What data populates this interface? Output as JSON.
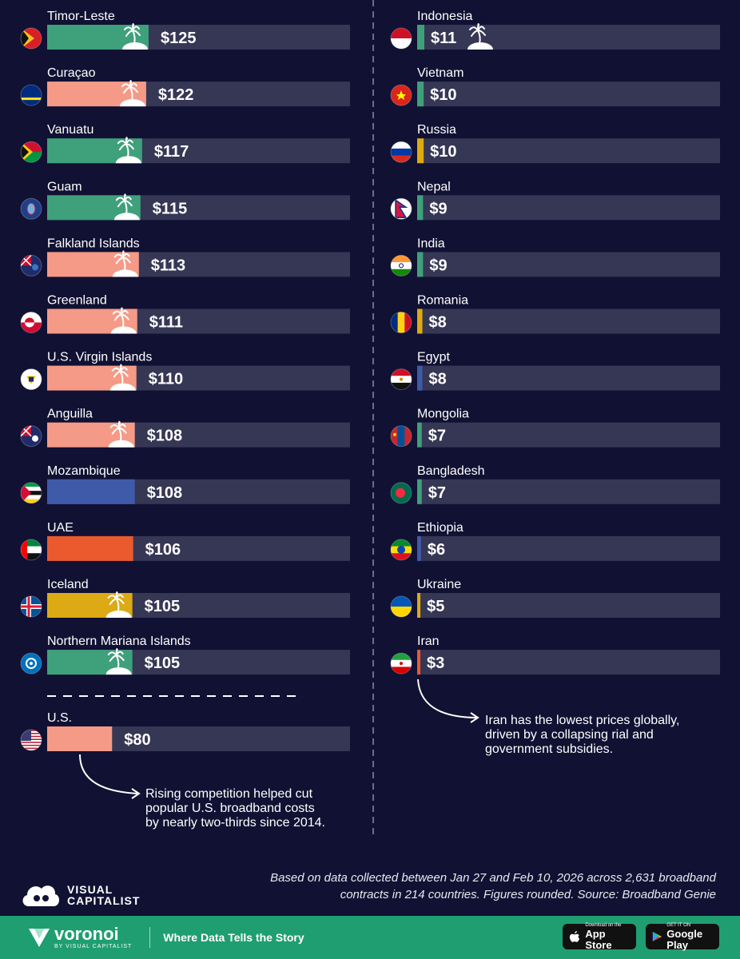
{
  "chart_data": {
    "type": "bar",
    "left_column": [
      {
        "country": "Timor-Leste",
        "value": 125,
        "label": "$125",
        "color": "#3fa07c",
        "island": true
      },
      {
        "country": "Curaçao",
        "value": 122,
        "label": "$122",
        "color": "#f59a86",
        "island": true
      },
      {
        "country": "Vanuatu",
        "value": 117,
        "label": "$117",
        "color": "#3fa07c",
        "island": true
      },
      {
        "country": "Guam",
        "value": 115,
        "label": "$115",
        "color": "#3fa07c",
        "island": true
      },
      {
        "country": "Falkland Islands",
        "value": 113,
        "label": "$113",
        "color": "#f59a86",
        "island": true
      },
      {
        "country": "Greenland",
        "value": 111,
        "label": "$111",
        "color": "#f59a86",
        "island": true
      },
      {
        "country": "U.S. Virgin Islands",
        "value": 110,
        "label": "$110",
        "color": "#f59a86",
        "island": true
      },
      {
        "country": "Anguilla",
        "value": 108,
        "label": "$108",
        "color": "#f59a86",
        "island": true
      },
      {
        "country": "Mozambique",
        "value": 108,
        "label": "$108",
        "color": "#3f5aa8",
        "island": false
      },
      {
        "country": "UAE",
        "value": 106,
        "label": "$106",
        "color": "#ea5a2e",
        "island": false
      },
      {
        "country": "Iceland",
        "value": 105,
        "label": "$105",
        "color": "#dcaa14",
        "island": true
      },
      {
        "country": "Northern Mariana Islands",
        "value": 105,
        "label": "$105",
        "color": "#3fa07c",
        "island": true
      }
    ],
    "highlight": {
      "country": "U.S.",
      "value": 80,
      "label": "$80",
      "color": "#f59a86"
    },
    "right_column": [
      {
        "country": "Indonesia",
        "value": 11,
        "label": "$11",
        "color": "#3fa07c",
        "island": true
      },
      {
        "country": "Vietnam",
        "value": 10,
        "label": "$10",
        "color": "#3fa07c",
        "island": false
      },
      {
        "country": "Russia",
        "value": 10,
        "label": "$10",
        "color": "#dcaa14",
        "island": false
      },
      {
        "country": "Nepal",
        "value": 9,
        "label": "$9",
        "color": "#3fa07c",
        "island": false
      },
      {
        "country": "India",
        "value": 9,
        "label": "$9",
        "color": "#3fa07c",
        "island": false
      },
      {
        "country": "Romania",
        "value": 8,
        "label": "$8",
        "color": "#dcaa14",
        "island": false
      },
      {
        "country": "Egypt",
        "value": 8,
        "label": "$8",
        "color": "#3f5aa8",
        "island": false
      },
      {
        "country": "Mongolia",
        "value": 7,
        "label": "$7",
        "color": "#3fa07c",
        "island": false
      },
      {
        "country": "Bangladesh",
        "value": 7,
        "label": "$7",
        "color": "#3fa07c",
        "island": false
      },
      {
        "country": "Ethiopia",
        "value": 6,
        "label": "$6",
        "color": "#3f5aa8",
        "island": false
      },
      {
        "country": "Ukraine",
        "value": 5,
        "label": "$5",
        "color": "#dcaa14",
        "island": false
      },
      {
        "country": "Iran",
        "value": 3,
        "label": "$3",
        "color": "#ea5a2e",
        "island": false
      }
    ],
    "annotations": {
      "us_note": [
        "Rising competition helped cut",
        "popular U.S. broadband costs",
        "by nearly two-thirds since 2014."
      ],
      "iran_note": [
        "Iran has the lowest prices globally,",
        "driven by a collapsing rial and",
        "government subsidies."
      ]
    },
    "xlim": [
      0,
      125
    ],
    "track_color": "#363655",
    "background_color": "#111133"
  },
  "footer": {
    "note_line1": "Based on data collected between Jan 27 and Feb 10, 2026 across 2,631 broadband",
    "note_line2": "contracts in 214 countries. Figures rounded. Source: Broadband Genie",
    "logo_line1": "VISUAL",
    "logo_line2": "CAPITALIST",
    "brand": "voronoi",
    "brand_sub": "BY VISUAL CAPITALIST",
    "tagline": "Where Data Tells the Story",
    "appstore_small": "Download on the",
    "appstore_big": "App Store",
    "googleplay_small": "GET IT ON",
    "googleplay_big": "Google Play",
    "bar_color": "#1f9e71"
  }
}
